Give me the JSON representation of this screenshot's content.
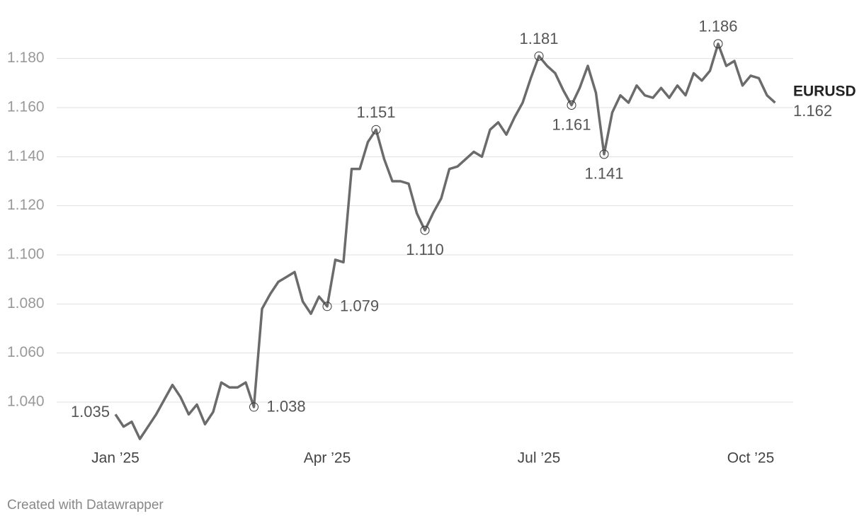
{
  "chart_data": {
    "type": "line",
    "categories": [
      "Jan ’25",
      null,
      null,
      null,
      null,
      null,
      null,
      null,
      null,
      null,
      null,
      null,
      null,
      null,
      null,
      null,
      null,
      null,
      null,
      null,
      null,
      null,
      null,
      null,
      null,
      null,
      "Apr ’25",
      null,
      null,
      null,
      null,
      null,
      null,
      null,
      null,
      null,
      null,
      null,
      null,
      null,
      null,
      null,
      null,
      null,
      null,
      null,
      null,
      null,
      null,
      null,
      null,
      null,
      "Jul ’25",
      null,
      null,
      null,
      null,
      null,
      null,
      null,
      null,
      null,
      null,
      null,
      null,
      null,
      null,
      null,
      null,
      null,
      null,
      null,
      null,
      null,
      null,
      null,
      null,
      null,
      "Oct ’25",
      null,
      null,
      null
    ],
    "series": [
      {
        "name": "EURUSD",
        "color": "#6b6b6b",
        "values": [
          1.035,
          1.03,
          1.032,
          1.025,
          1.03,
          1.035,
          1.041,
          1.047,
          1.042,
          1.035,
          1.039,
          1.031,
          1.036,
          1.048,
          1.046,
          1.046,
          1.048,
          1.038,
          1.078,
          1.084,
          1.089,
          1.091,
          1.093,
          1.081,
          1.076,
          1.083,
          1.079,
          1.098,
          1.097,
          1.135,
          1.135,
          1.146,
          1.151,
          1.139,
          1.13,
          1.13,
          1.129,
          1.117,
          1.11,
          1.117,
          1.123,
          1.135,
          1.136,
          1.139,
          1.142,
          1.14,
          1.151,
          1.154,
          1.149,
          1.156,
          1.162,
          1.172,
          1.181,
          1.177,
          1.174,
          1.167,
          1.161,
          1.168,
          1.177,
          1.166,
          1.141,
          1.158,
          1.165,
          1.162,
          1.169,
          1.165,
          1.164,
          1.168,
          1.164,
          1.169,
          1.165,
          1.174,
          1.171,
          1.175,
          1.186,
          1.177,
          1.179,
          1.169,
          1.173,
          1.172,
          1.165,
          1.162
        ],
        "value_labels": [
          "1.035",
          null,
          null,
          null,
          null,
          null,
          null,
          null,
          null,
          null,
          null,
          null,
          null,
          null,
          null,
          null,
          null,
          "1.038",
          null,
          null,
          null,
          null,
          null,
          null,
          null,
          null,
          "1.079",
          null,
          null,
          null,
          null,
          null,
          "1.151",
          null,
          null,
          null,
          null,
          null,
          "1.110",
          null,
          null,
          null,
          null,
          null,
          null,
          null,
          null,
          null,
          null,
          null,
          null,
          null,
          "1.181",
          null,
          null,
          null,
          "1.161",
          null,
          null,
          null,
          "1.141",
          null,
          null,
          null,
          null,
          null,
          null,
          null,
          null,
          null,
          null,
          null,
          null,
          null,
          "1.186",
          null,
          null,
          null,
          null,
          null,
          null,
          "1.162"
        ]
      }
    ],
    "ylim": [
      1.025,
      1.19
    ],
    "yticks": [
      {
        "value": 1.04,
        "label": "1.040"
      },
      {
        "value": 1.06,
        "label": "1.060"
      },
      {
        "value": 1.08,
        "label": "1.080"
      },
      {
        "value": 1.1,
        "label": "1.100"
      },
      {
        "value": 1.12,
        "label": "1.120"
      },
      {
        "value": 1.14,
        "label": "1.140"
      },
      {
        "value": 1.16,
        "label": "1.160"
      },
      {
        "value": 1.18,
        "label": "1.180"
      }
    ],
    "grid": true,
    "credit": "Created with Datawrapper"
  }
}
